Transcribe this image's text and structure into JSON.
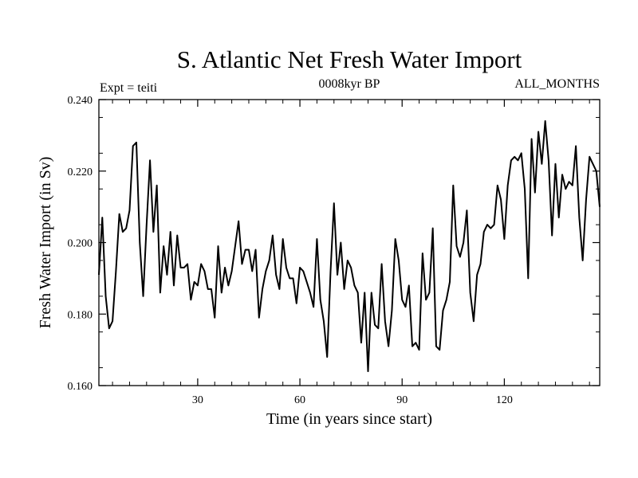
{
  "chart_data": {
    "type": "line",
    "title": "S. Atlantic Net Fresh Water Import",
    "subtitle_left": "Expt = teiti",
    "subtitle_center": "0008kyr BP",
    "subtitle_right": "ALL_MONTHS",
    "xlabel": "Time (in years since start)",
    "ylabel": "Fresh Water Import (in Sv)",
    "xlim": [
      1,
      148
    ],
    "ylim": [
      0.16,
      0.24
    ],
    "xticks": [
      30,
      60,
      90,
      120
    ],
    "xtick_labels": [
      "30",
      "60",
      "90",
      "120"
    ],
    "yticks": [
      0.16,
      0.18,
      0.2,
      0.22,
      0.24
    ],
    "ytick_labels": [
      "0.160",
      "0.180",
      "0.200",
      "0.220",
      "0.240"
    ],
    "grid": false,
    "series": [
      {
        "name": "Net Fresh Water Import",
        "color": "#000000",
        "values": [
          0.191,
          0.207,
          0.185,
          0.176,
          0.178,
          0.192,
          0.208,
          0.203,
          0.204,
          0.209,
          0.227,
          0.228,
          0.2,
          0.185,
          0.205,
          0.223,
          0.203,
          0.216,
          0.186,
          0.199,
          0.191,
          0.203,
          0.188,
          0.202,
          0.193,
          0.193,
          0.194,
          0.184,
          0.189,
          0.188,
          0.194,
          0.192,
          0.187,
          0.187,
          0.179,
          0.199,
          0.186,
          0.193,
          0.188,
          0.192,
          0.199,
          0.206,
          0.194,
          0.198,
          0.198,
          0.192,
          0.198,
          0.179,
          0.187,
          0.192,
          0.195,
          0.202,
          0.191,
          0.187,
          0.201,
          0.193,
          0.19,
          0.19,
          0.183,
          0.193,
          0.192,
          0.189,
          0.186,
          0.182,
          0.201,
          0.184,
          0.178,
          0.168,
          0.192,
          0.211,
          0.191,
          0.2,
          0.187,
          0.195,
          0.193,
          0.188,
          0.186,
          0.172,
          0.186,
          0.164,
          0.186,
          0.177,
          0.176,
          0.194,
          0.178,
          0.171,
          0.181,
          0.201,
          0.195,
          0.184,
          0.182,
          0.188,
          0.171,
          0.172,
          0.17,
          0.197,
          0.184,
          0.186,
          0.204,
          0.171,
          0.17,
          0.181,
          0.184,
          0.189,
          0.216,
          0.199,
          0.196,
          0.2,
          0.209,
          0.186,
          0.178,
          0.191,
          0.194,
          0.203,
          0.205,
          0.204,
          0.205,
          0.216,
          0.212,
          0.201,
          0.216,
          0.223,
          0.224,
          0.223,
          0.225,
          0.215,
          0.19,
          0.229,
          0.214,
          0.231,
          0.222,
          0.234,
          0.223,
          0.202,
          0.222,
          0.207,
          0.219,
          0.215,
          0.217,
          0.216,
          0.227,
          0.207,
          0.195,
          0.212,
          0.224,
          0.222,
          0.22,
          0.21
        ]
      }
    ]
  }
}
